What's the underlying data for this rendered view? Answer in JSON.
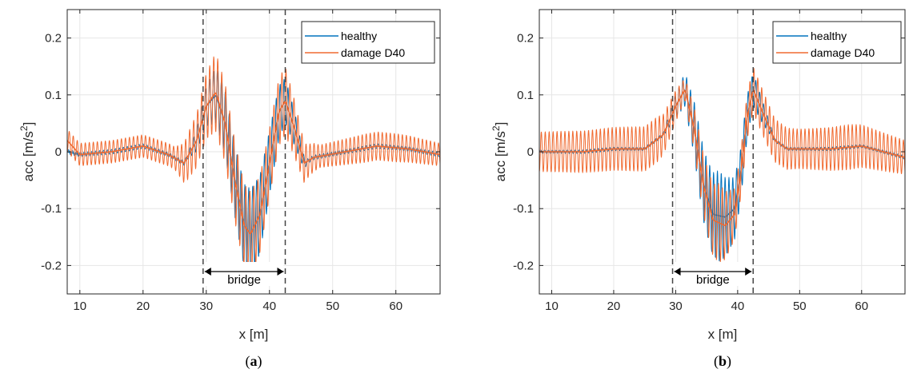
{
  "colors": {
    "healthy": "#0072BD",
    "damage": "#F06A30",
    "grid": "#e6e6e6",
    "axis": "#262626",
    "vline": "#444444"
  },
  "chart_data": [
    {
      "panel": "a",
      "caption_open": "(",
      "caption_letter": "a",
      "caption_close": ")",
      "type": "line",
      "xlabel": "x [m]",
      "ylabel_main": "acc [m/s",
      "ylabel_sup": "2",
      "ylabel_end": "]",
      "xlim": [
        8,
        67
      ],
      "ylim": [
        -0.25,
        0.25
      ],
      "xticks": [
        10,
        20,
        30,
        40,
        50,
        60
      ],
      "xtick_labels": [
        "10",
        "20",
        "30",
        "40",
        "50",
        "60"
      ],
      "yticks": [
        -0.2,
        -0.1,
        0,
        0.1,
        0.2
      ],
      "ytick_labels": [
        "-0.2",
        "-0.1",
        "0",
        "0.1",
        "0.2"
      ],
      "grid": true,
      "legend_position": "top-right",
      "bridge_start": 29.5,
      "bridge_end": 42.5,
      "bridge_label": "bridge",
      "series": [
        {
          "name": "healthy",
          "trend": [
            [
              8,
              0.0
            ],
            [
              10,
              -0.005
            ],
            [
              15,
              0.0
            ],
            [
              20,
              0.01
            ],
            [
              24,
              -0.005
            ],
            [
              26.5,
              -0.02
            ],
            [
              28.5,
              0.02
            ],
            [
              30,
              0.08
            ],
            [
              31.5,
              0.1
            ],
            [
              33,
              0.05
            ],
            [
              34.5,
              -0.05
            ],
            [
              36,
              -0.13
            ],
            [
              37,
              -0.145
            ],
            [
              38.5,
              -0.11
            ],
            [
              40,
              -0.02
            ],
            [
              41.5,
              0.07
            ],
            [
              42.5,
              0.09
            ],
            [
              44,
              0.04
            ],
            [
              45.5,
              -0.02
            ],
            [
              47,
              -0.01
            ],
            [
              52,
              0.0
            ],
            [
              57,
              0.01
            ],
            [
              62,
              0.005
            ],
            [
              67,
              -0.005
            ]
          ],
          "osc": [
            [
              8,
              0.004
            ],
            [
              27,
              0.004
            ],
            [
              29.5,
              0.03
            ],
            [
              31.5,
              0.05
            ],
            [
              34,
              0.06
            ],
            [
              37,
              0.08
            ],
            [
              41,
              0.05
            ],
            [
              42.5,
              0.04
            ],
            [
              44,
              0.03
            ],
            [
              46,
              0.004
            ],
            [
              67,
              0.004
            ]
          ]
        },
        {
          "name": "damage D40",
          "trend": [
            [
              8,
              0.02
            ],
            [
              10,
              -0.005
            ],
            [
              15,
              0.0
            ],
            [
              20,
              0.01
            ],
            [
              24,
              -0.005
            ],
            [
              26.5,
              -0.02
            ],
            [
              28.5,
              0.02
            ],
            [
              30,
              0.08
            ],
            [
              31.5,
              0.105
            ],
            [
              33,
              0.05
            ],
            [
              34.5,
              -0.05
            ],
            [
              36,
              -0.13
            ],
            [
              37,
              -0.145
            ],
            [
              38.5,
              -0.11
            ],
            [
              40,
              -0.02
            ],
            [
              41.5,
              0.07
            ],
            [
              42.5,
              0.09
            ],
            [
              44,
              0.04
            ],
            [
              45.5,
              -0.02
            ],
            [
              47,
              -0.01
            ],
            [
              52,
              0.0
            ],
            [
              57,
              0.01
            ],
            [
              62,
              0.005
            ],
            [
              67,
              -0.005
            ]
          ],
          "osc": [
            [
              8,
              0.02
            ],
            [
              25,
              0.02
            ],
            [
              27,
              0.04
            ],
            [
              29,
              0.05
            ],
            [
              31.5,
              0.07
            ],
            [
              34,
              0.07
            ],
            [
              37,
              0.075
            ],
            [
              40,
              0.06
            ],
            [
              42.5,
              0.06
            ],
            [
              44,
              0.05
            ],
            [
              46,
              0.03
            ],
            [
              48,
              0.02
            ],
            [
              55,
              0.025
            ],
            [
              60,
              0.025
            ],
            [
              67,
              0.02
            ]
          ]
        }
      ]
    },
    {
      "panel": "b",
      "caption_open": "(",
      "caption_letter": "b",
      "caption_close": ")",
      "type": "line",
      "xlabel": "x [m]",
      "ylabel_main": "acc [m/s",
      "ylabel_sup": "2",
      "ylabel_end": "]",
      "xlim": [
        8,
        67
      ],
      "ylim": [
        -0.25,
        0.25
      ],
      "xticks": [
        10,
        20,
        30,
        40,
        50,
        60
      ],
      "xtick_labels": [
        "10",
        "20",
        "30",
        "40",
        "50",
        "60"
      ],
      "yticks": [
        -0.2,
        -0.1,
        0,
        0.1,
        0.2
      ],
      "ytick_labels": [
        "-0.2",
        "-0.1",
        "0",
        "0.1",
        "0.2"
      ],
      "grid": true,
      "legend_position": "top-right",
      "bridge_start": 29.5,
      "bridge_end": 42.5,
      "bridge_label": "bridge",
      "series": [
        {
          "name": "healthy",
          "trend": [
            [
              8,
              0.0
            ],
            [
              15,
              0.0
            ],
            [
              20,
              0.005
            ],
            [
              25,
              0.005
            ],
            [
              28,
              0.03
            ],
            [
              30,
              0.08
            ],
            [
              31.5,
              0.11
            ],
            [
              33,
              0.04
            ],
            [
              34.5,
              -0.06
            ],
            [
              36,
              -0.11
            ],
            [
              38,
              -0.115
            ],
            [
              39.5,
              -0.1
            ],
            [
              40.5,
              -0.04
            ],
            [
              41.5,
              0.06
            ],
            [
              42.5,
              0.11
            ],
            [
              44,
              0.07
            ],
            [
              46,
              0.02
            ],
            [
              48,
              0.005
            ],
            [
              55,
              0.005
            ],
            [
              60,
              0.01
            ],
            [
              67,
              -0.01
            ]
          ],
          "osc": [
            [
              8,
              0.003
            ],
            [
              28,
              0.003
            ],
            [
              30,
              0.02
            ],
            [
              31.5,
              0.03
            ],
            [
              34,
              0.06
            ],
            [
              37,
              0.08
            ],
            [
              40,
              0.05
            ],
            [
              42.5,
              0.03
            ],
            [
              44,
              0.02
            ],
            [
              46,
              0.003
            ],
            [
              67,
              0.003
            ]
          ]
        },
        {
          "name": "damage D40",
          "trend": [
            [
              8,
              0.0
            ],
            [
              15,
              0.0
            ],
            [
              20,
              0.005
            ],
            [
              25,
              0.005
            ],
            [
              28,
              0.03
            ],
            [
              30,
              0.08
            ],
            [
              31.5,
              0.11
            ],
            [
              33,
              0.04
            ],
            [
              34.5,
              -0.06
            ],
            [
              36,
              -0.12
            ],
            [
              38,
              -0.13
            ],
            [
              39.5,
              -0.11
            ],
            [
              40.5,
              -0.04
            ],
            [
              41.5,
              0.06
            ],
            [
              42.5,
              0.11
            ],
            [
              44,
              0.07
            ],
            [
              46,
              0.02
            ],
            [
              48,
              0.005
            ],
            [
              55,
              0.005
            ],
            [
              60,
              0.01
            ],
            [
              67,
              -0.01
            ]
          ],
          "osc": [
            [
              8,
              0.035
            ],
            [
              27,
              0.04
            ],
            [
              29.5,
              0.03
            ],
            [
              31.5,
              0.02
            ],
            [
              34,
              0.05
            ],
            [
              37,
              0.07
            ],
            [
              40,
              0.04
            ],
            [
              42.5,
              0.04
            ],
            [
              44,
              0.04
            ],
            [
              50,
              0.035
            ],
            [
              58,
              0.04
            ],
            [
              67,
              0.03
            ]
          ]
        }
      ]
    }
  ]
}
